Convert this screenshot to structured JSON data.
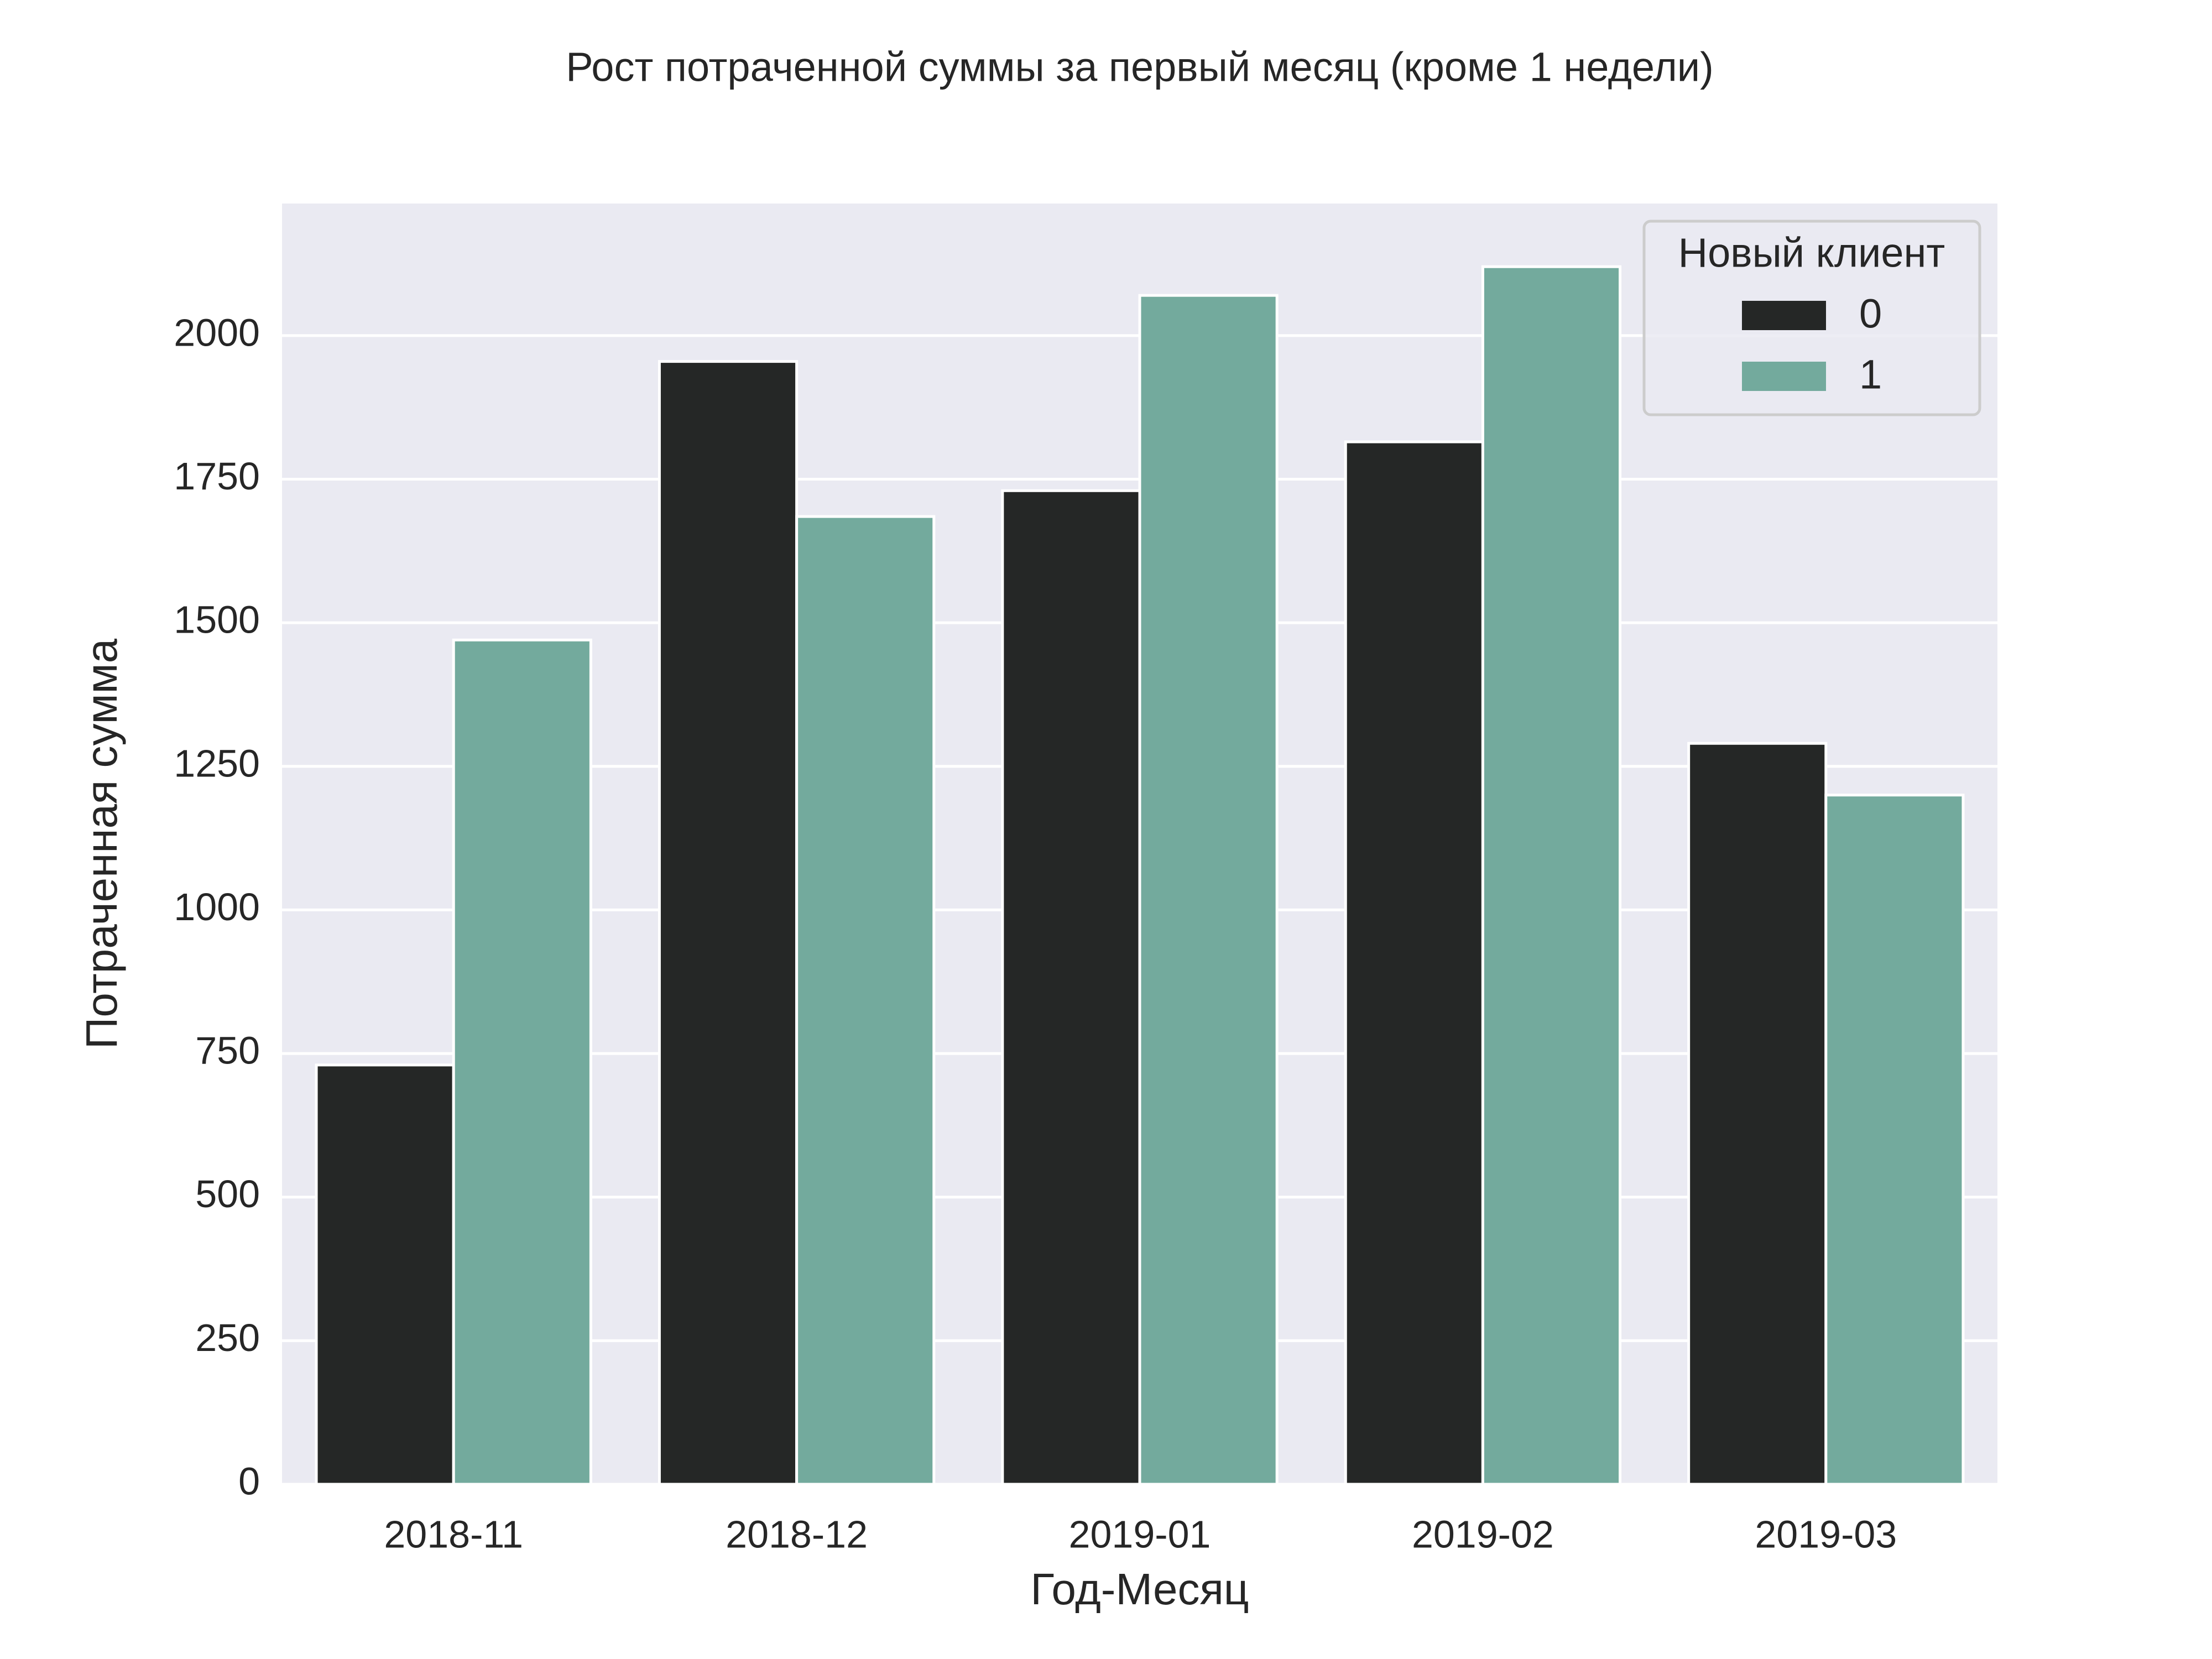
{
  "chart_data": {
    "type": "bar",
    "title": "Рост потраченной суммы за первый месяц (кроме 1 недели)",
    "xlabel": "Год-Месяц",
    "ylabel": "Потраченная сумма",
    "categories": [
      "2018-11",
      "2018-12",
      "2019-01",
      "2019-02",
      "2019-03"
    ],
    "series": [
      {
        "name": "0",
        "values": [
          730,
          1955,
          1730,
          1815,
          1290
        ],
        "color": "#252726"
      },
      {
        "name": "1",
        "values": [
          1470,
          1685,
          2070,
          2120,
          1200
        ],
        "color": "#73aa9d"
      }
    ],
    "ylim": [
      0,
      2230
    ],
    "yticks": [
      "0",
      "250",
      "500",
      "750",
      "1000",
      "1250",
      "1500",
      "1750",
      "2000"
    ],
    "legend": {
      "title": "Новый клиент",
      "position": "top-right"
    },
    "grid": true,
    "background": "#eaeaf2",
    "gridline_color": "#ffffff"
  }
}
